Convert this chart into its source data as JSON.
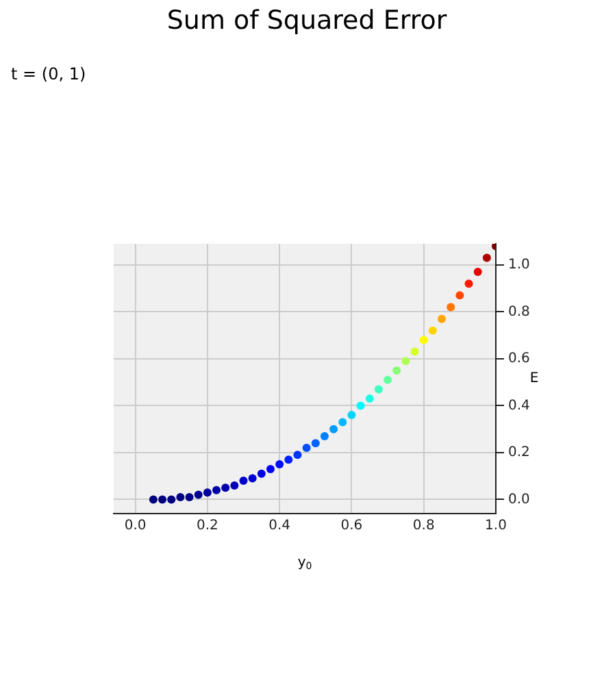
{
  "chart_data": {
    "type": "scatter",
    "title": "Sum of Squared Error",
    "xlabel": "y$_{0}$",
    "ylabel": "E",
    "annotations": [
      "t = (0, 1)"
    ],
    "x": [
      0.05,
      0.075,
      0.1,
      0.125,
      0.15,
      0.175,
      0.2,
      0.225,
      0.25,
      0.275,
      0.3,
      0.325,
      0.35,
      0.375,
      0.4,
      0.425,
      0.45,
      0.475,
      0.5,
      0.525,
      0.55,
      0.575,
      0.6,
      0.625,
      0.65,
      0.675,
      0.7,
      0.725,
      0.75,
      0.775,
      0.8,
      0.825,
      0.85,
      0.875,
      0.9,
      0.925,
      0.95,
      0.975,
      1.0
    ],
    "values": [
      0.0,
      0.0,
      0.0,
      0.01,
      0.01,
      0.02,
      0.03,
      0.04,
      0.05,
      0.06,
      0.08,
      0.09,
      0.11,
      0.13,
      0.15,
      0.17,
      0.19,
      0.22,
      0.24,
      0.27,
      0.3,
      0.33,
      0.36,
      0.4,
      0.43,
      0.47,
      0.51,
      0.55,
      0.59,
      0.63,
      0.68,
      0.72,
      0.77,
      0.82,
      0.87,
      0.92,
      0.97,
      1.03,
      1.08
    ],
    "colors": [
      "#000080",
      "#000080",
      "#000080",
      "#000089",
      "#000089",
      "#000092",
      "#00009c",
      "#0000a5",
      "#0000af",
      "#0000b8",
      "#0000cb",
      "#0000d4",
      "#0000e7",
      "#0000fa",
      "#000eff",
      "#0021ff",
      "#0034ff",
      "#0050ff",
      "#0063ff",
      "#0080ff",
      "#009cff",
      "#00b8ff",
      "#00d4ff",
      "#00faff",
      "#18ffe7",
      "#3dffc2",
      "#63ff9c",
      "#89ff76",
      "#afff50",
      "#d4ff2b",
      "#fffa00",
      "#ffd400",
      "#ffa500",
      "#ff7600",
      "#ff4700",
      "#ff1800",
      "#e70000",
      "#af0000",
      "#800000"
    ],
    "xlim": [
      -0.06,
      1.0
    ],
    "xticks": [
      {
        "value": 0,
        "label": "0.0"
      },
      0.2,
      0.4,
      0.6,
      0.8,
      {
        "value": 1,
        "label": "1.0"
      }
    ],
    "ylim": [
      -0.06,
      1.09
    ],
    "yticks": [
      {
        "value": 0,
        "label": "0.0"
      },
      0.2,
      0.4,
      0.6,
      0.8,
      {
        "value": 1,
        "label": "1.0"
      }
    ],
    "grid": true,
    "marker": "circle"
  }
}
